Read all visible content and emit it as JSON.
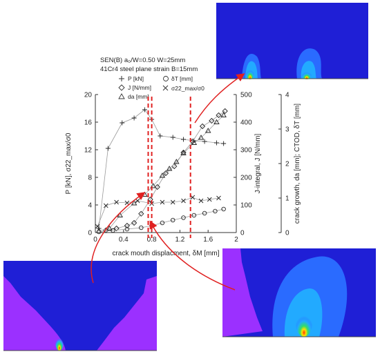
{
  "chart_data": {
    "type": "line",
    "header_lines": [
      "SEN(B)  a₀/W=0.50   W=25mm",
      "41Cr4 steel   plane strain    B=15mm"
    ],
    "xlabel": "crack mouth displacment, δM [mm]",
    "ylabel_left": "P [kN], σ22_max/σ0",
    "ylabel_middle": "J-integral, J [N/mm]",
    "ylabel_right": "crack growth, da [mm]; CTOD, δT [mm]",
    "x_range": [
      0,
      2
    ],
    "x_ticks": [
      "0",
      "0.4",
      "0.8",
      "1.2",
      "1.6",
      "2"
    ],
    "y_left_range": [
      0,
      20
    ],
    "y_left_ticks": [
      "0",
      "4",
      "8",
      "12",
      "16",
      "20"
    ],
    "y_middle_range": [
      0,
      500
    ],
    "y_middle_ticks": [
      "0",
      "100",
      "200",
      "300",
      "400",
      "500"
    ],
    "y_right_range": [
      0,
      4
    ],
    "y_right_ticks": [
      "0",
      "1",
      "2",
      "3",
      "4"
    ],
    "legend": [
      {
        "label": "P [kN]",
        "marker": "plus"
      },
      {
        "label": "J [N/mm]",
        "marker": "diamond"
      },
      {
        "label": "da [mm]",
        "marker": "triangle"
      },
      {
        "label": "δT [mm]",
        "marker": "circle"
      },
      {
        "label": "σ22_max/σ0",
        "marker": "cross"
      }
    ],
    "series": [
      {
        "name": "P [kN]",
        "axis": "left",
        "marker": "plus",
        "x": [
          0.05,
          0.18,
          0.38,
          0.55,
          0.7,
          0.8,
          0.92,
          1.1,
          1.25,
          1.4,
          1.55,
          1.72,
          1.82
        ],
        "y": [
          0.6,
          12.2,
          15.9,
          16.6,
          17.8,
          16.4,
          14.0,
          13.8,
          13.5,
          13.3,
          13.2,
          13.0,
          12.9
        ]
      },
      {
        "name": "J [N/mm]",
        "axis": "middle",
        "marker": "diamond",
        "x": [
          0.15,
          0.3,
          0.45,
          0.55,
          0.65,
          0.78,
          0.88,
          1.0,
          1.12,
          1.25,
          1.38,
          1.52,
          1.65,
          1.75,
          1.84
        ],
        "y": [
          8,
          15,
          25,
          35,
          68,
          120,
          165,
          215,
          240,
          290,
          330,
          385,
          405,
          425,
          440
        ]
      },
      {
        "name": "da [mm]",
        "axis": "right",
        "marker": "triangle",
        "x": [
          0.05,
          0.2,
          0.35,
          0.55,
          0.7,
          0.82,
          0.95,
          1.05,
          1.15,
          1.25,
          1.4,
          1.5,
          1.6,
          1.72,
          1.82
        ],
        "y": [
          0.05,
          0.12,
          0.5,
          0.85,
          1.1,
          1.35,
          1.65,
          1.85,
          2.05,
          2.3,
          2.6,
          2.75,
          2.95,
          3.2,
          3.4
        ]
      },
      {
        "name": "δT [mm]",
        "axis": "right",
        "marker": "circle",
        "x": [
          0.05,
          0.25,
          0.45,
          0.65,
          0.8,
          0.95,
          1.1,
          1.25,
          1.4,
          1.55,
          1.7,
          1.82
        ],
        "y": [
          0.02,
          0.06,
          0.1,
          0.14,
          0.2,
          0.28,
          0.36,
          0.43,
          0.5,
          0.56,
          0.62,
          0.68
        ]
      },
      {
        "name": "σ22_max/σ0",
        "axis": "left",
        "marker": "cross",
        "x": [
          0.03,
          0.15,
          0.3,
          0.45,
          0.6,
          0.8,
          0.95,
          1.1,
          1.25,
          1.38,
          1.5,
          1.62,
          1.75
        ],
        "y": [
          0.9,
          3.9,
          4.4,
          4.3,
          4.6,
          4.2,
          4.4,
          4.4,
          4.6,
          5.1,
          4.6,
          4.8,
          5.0
        ]
      }
    ],
    "dashed_markers_x": [
      0.75,
      0.8,
      1.35
    ]
  }
}
